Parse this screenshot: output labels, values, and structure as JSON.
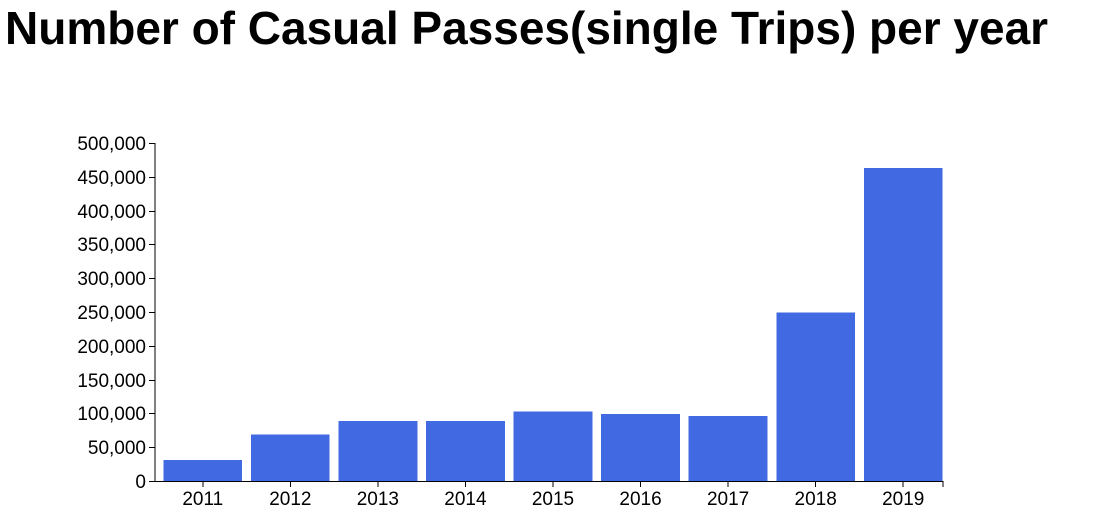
{
  "chart_data": {
    "type": "bar",
    "title": "Number of Casual Passes(single Trips) per year",
    "xlabel": "",
    "ylabel": "",
    "categories": [
      "2011",
      "2012",
      "2013",
      "2014",
      "2015",
      "2016",
      "2017",
      "2018",
      "2019"
    ],
    "values": [
      31000,
      69000,
      89000,
      89000,
      103000,
      99000,
      96000,
      249000,
      463000
    ],
    "ylim": [
      0,
      500000
    ],
    "yticks": [
      0,
      50000,
      100000,
      150000,
      200000,
      250000,
      300000,
      350000,
      400000,
      450000,
      500000
    ],
    "ytick_labels": [
      "0",
      "50,000",
      "100,000",
      "150,000",
      "200,000",
      "250,000",
      "300,000",
      "350,000",
      "400,000",
      "450,000",
      "500,000"
    ],
    "bar_color": "#4169e1",
    "grid": false,
    "legend": "none"
  }
}
